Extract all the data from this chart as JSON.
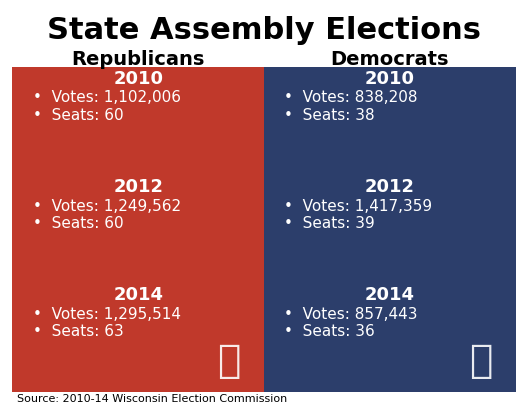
{
  "title": "State Assembly Elections",
  "title_fontsize": 22,
  "col_headers": [
    "Republicans",
    "Democrats"
  ],
  "col_header_fontsize": 14,
  "rep_color": "#C0392B",
  "dem_color": "#2C3E6B",
  "text_color": "#FFFFFF",
  "bg_color": "#FFFFFF",
  "source_text": "Source: 2010-14 Wisconsin Election Commission",
  "source_fontsize": 8,
  "years": [
    "2010",
    "2012",
    "2014"
  ],
  "year_fontsize": 13,
  "data_fontsize": 11,
  "republicans": [
    {
      "year": "2010",
      "votes": "1,102,006",
      "seats": "60"
    },
    {
      "year": "2012",
      "votes": "1,249,562",
      "seats": "60"
    },
    {
      "year": "2014",
      "votes": "1,295,514",
      "seats": "63"
    }
  ],
  "democrats": [
    {
      "year": "2010",
      "votes": "838,208",
      "seats": "38"
    },
    {
      "year": "2012",
      "votes": "1,417,359",
      "seats": "39"
    },
    {
      "year": "2014",
      "votes": "857,443",
      "seats": "36"
    }
  ]
}
